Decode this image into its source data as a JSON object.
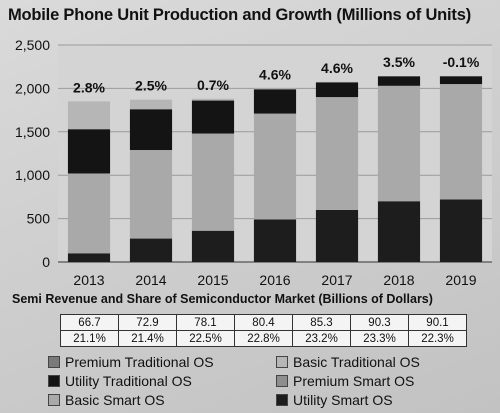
{
  "chart_data": {
    "type": "bar",
    "stacked": true,
    "title": "Mobile Phone Unit Production and Growth (Millions of Units)",
    "categories": [
      "2013",
      "2014",
      "2015",
      "2016",
      "2017",
      "2018",
      "2019"
    ],
    "ylim": [
      0,
      2500
    ],
    "yticks": [
      "0",
      "500",
      "1,000",
      "1,500",
      "2,000",
      "2,500"
    ],
    "grid": true,
    "growth_labels": [
      "2.8%",
      "2.5%",
      "0.7%",
      "4.6%",
      "4.6%",
      "3.5%",
      "-0.1%"
    ],
    "series": [
      {
        "name": "Utility Smart OS",
        "color": "#1d1d1d",
        "values": [
          100,
          270,
          360,
          490,
          600,
          700,
          720
        ]
      },
      {
        "name": "Basic Smart OS",
        "color": "#a9a9a9",
        "values": [
          920,
          1020,
          1120,
          1220,
          1300,
          1330,
          1330
        ]
      },
      {
        "name": "Utility Traditional OS",
        "color": "#141414",
        "values": [
          510,
          470,
          380,
          280,
          170,
          110,
          90
        ]
      },
      {
        "name": "Basic Traditional OS",
        "color": "#b6b6b6",
        "values": [
          320,
          110,
          20,
          10,
          5,
          3,
          2
        ]
      },
      {
        "name": "Premium Smart OS",
        "color": "#8e8e8e",
        "values": [
          0,
          0,
          0,
          0,
          0,
          0,
          0
        ]
      },
      {
        "name": "Premium Traditional OS",
        "color": "#7a7a7a",
        "values": [
          0,
          0,
          0,
          0,
          0,
          0,
          0
        ]
      }
    ]
  },
  "semi": {
    "title": "Semi Revenue and Share of Semiconductor Market (Billions of Dollars)",
    "revenue": [
      "66.7",
      "72.9",
      "78.1",
      "80.4",
      "85.3",
      "90.3",
      "90.1"
    ],
    "share": [
      "21.1%",
      "21.4%",
      "22.5%",
      "22.8%",
      "23.2%",
      "23.3%",
      "22.3%"
    ]
  },
  "legend": [
    {
      "label": "Premium Traditional OS",
      "color": "#7a7a7a"
    },
    {
      "label": "Basic Traditional OS",
      "color": "#b6b6b6"
    },
    {
      "label": "Utility Traditional OS",
      "color": "#141414"
    },
    {
      "label": "Premium Smart OS",
      "color": "#8e8e8e"
    },
    {
      "label": "Basic Smart OS",
      "color": "#a9a9a9"
    },
    {
      "label": "Utility Smart OS",
      "color": "#1d1d1d"
    }
  ]
}
